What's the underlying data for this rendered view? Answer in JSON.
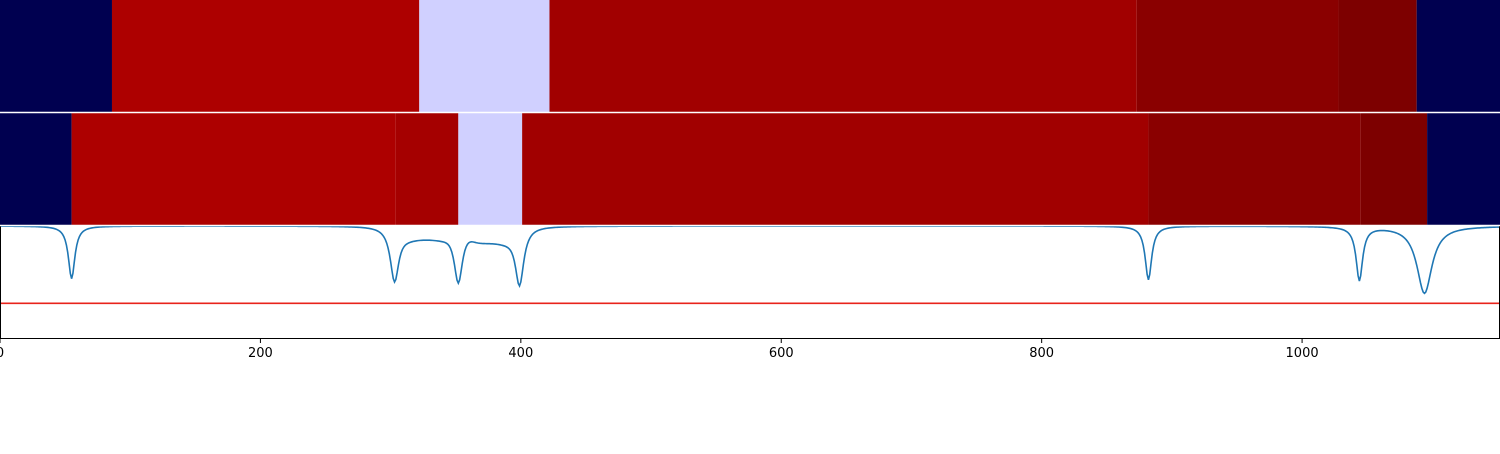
{
  "colors": {
    "background": "#ffffff",
    "axis": "#000000",
    "signal_line": "#1f77b4",
    "threshold_line": "#e8231b",
    "panel_separator": "#ffffff"
  },
  "chart_data": [
    {
      "type": "heatmap",
      "name": "segmentation-track-1",
      "x_range": [
        0,
        1152
      ],
      "segments": [
        {
          "start": 0,
          "end": 86,
          "color": "#000050"
        },
        {
          "start": 86,
          "end": 322,
          "color": "#ad0000"
        },
        {
          "start": 322,
          "end": 422,
          "color": "#d0d0ff"
        },
        {
          "start": 422,
          "end": 873,
          "color": "#a10000"
        },
        {
          "start": 873,
          "end": 1028,
          "color": "#8a0000"
        },
        {
          "start": 1028,
          "end": 1088,
          "color": "#7d0000"
        },
        {
          "start": 1088,
          "end": 1152,
          "color": "#000050"
        }
      ]
    },
    {
      "type": "heatmap",
      "name": "segmentation-track-2",
      "x_range": [
        0,
        1152
      ],
      "segments": [
        {
          "start": 0,
          "end": 55,
          "color": "#000050"
        },
        {
          "start": 55,
          "end": 304,
          "color": "#ad0000"
        },
        {
          "start": 304,
          "end": 352,
          "color": "#a50000"
        },
        {
          "start": 352,
          "end": 401,
          "color": "#d0d0ff"
        },
        {
          "start": 401,
          "end": 882,
          "color": "#a10000"
        },
        {
          "start": 882,
          "end": 1045,
          "color": "#8a0000"
        },
        {
          "start": 1045,
          "end": 1096,
          "color": "#7d0000"
        },
        {
          "start": 1096,
          "end": 1152,
          "color": "#000050"
        }
      ]
    },
    {
      "type": "line",
      "name": "boundary-score",
      "x_range": [
        0,
        1152
      ],
      "y_range": [
        0,
        1
      ],
      "grid": false,
      "xticks": [
        0,
        200,
        400,
        600,
        800,
        1000
      ],
      "xtick_labels": [
        "0",
        "200",
        "400",
        "600",
        "800",
        "1000"
      ],
      "threshold": 0.31,
      "dips": [
        {
          "center": 55,
          "depth": 0.47,
          "width": 3
        },
        {
          "center": 303,
          "depth": 0.48,
          "width": 4
        },
        {
          "center": 352,
          "depth": 0.49,
          "width": 4
        },
        {
          "center": 399,
          "depth": 0.51,
          "width": 4
        },
        {
          "center": 882,
          "depth": 0.48,
          "width": 3
        },
        {
          "center": 1044,
          "depth": 0.48,
          "width": 3
        },
        {
          "center": 1094,
          "depth": 0.6,
          "width": 7
        }
      ],
      "shelves": [
        {
          "start": 308,
          "end": 345,
          "level": 0.9
        },
        {
          "start": 362,
          "end": 394,
          "level": 0.87
        }
      ]
    }
  ]
}
